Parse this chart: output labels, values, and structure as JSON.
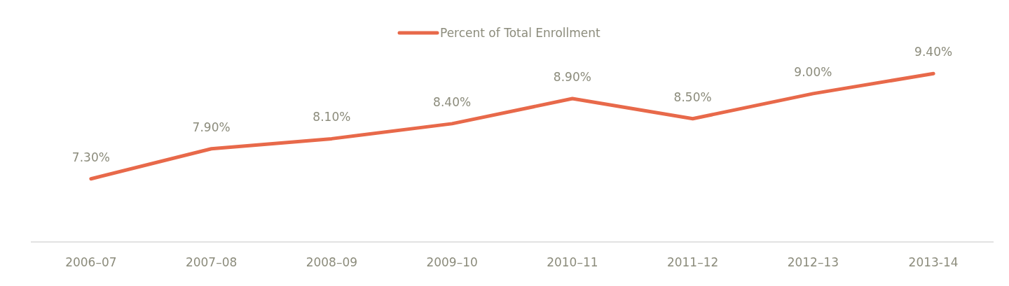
{
  "chart_data": {
    "type": "line",
    "categories": [
      "2006–07",
      "2007–08",
      "2008–09",
      "2009–10",
      "2010–11",
      "2011–12",
      "2012–13",
      "2013-14"
    ],
    "series": [
      {
        "name": "Percent of Total Enrollment",
        "color": "#e8694a",
        "values": [
          7.3,
          7.9,
          8.1,
          8.4,
          8.9,
          8.5,
          9.0,
          9.4
        ],
        "value_labels": [
          "7.30%",
          "7.90%",
          "8.10%",
          "8.40%",
          "8.90%",
          "8.50%",
          "9.00%",
          "9.40%"
        ]
      }
    ],
    "legend": "top",
    "marker": "none",
    "line_style": "solid"
  }
}
